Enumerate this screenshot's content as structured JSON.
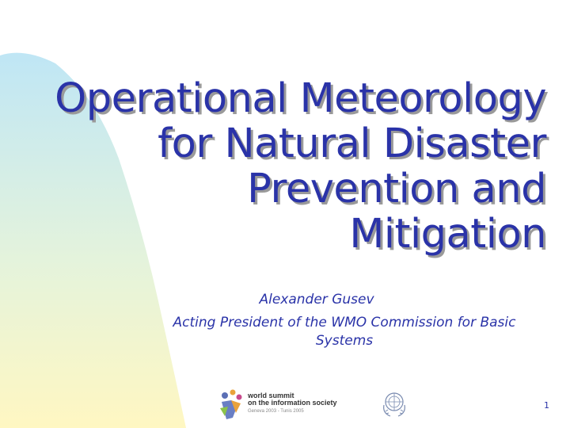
{
  "slide": {
    "title_lines": [
      "Operational Meteorology",
      "for Natural Disaster",
      "Prevention and",
      "Mitigation"
    ],
    "author": "Alexander Gusev",
    "role_line1": "Acting President of the WMO Commission for Basic",
    "role_line2": "Systems",
    "page_number": "1"
  },
  "logos": {
    "wsis_line1": "world summit",
    "wsis_line2": "on the information society",
    "wsis_line3": "Geneva 2003 - Tunis 2005"
  },
  "colors": {
    "title": "#2a33a8",
    "shadow": "#9a9a9a",
    "gradient_top": "#bfe6f5",
    "gradient_bottom": "#fff7c2"
  }
}
